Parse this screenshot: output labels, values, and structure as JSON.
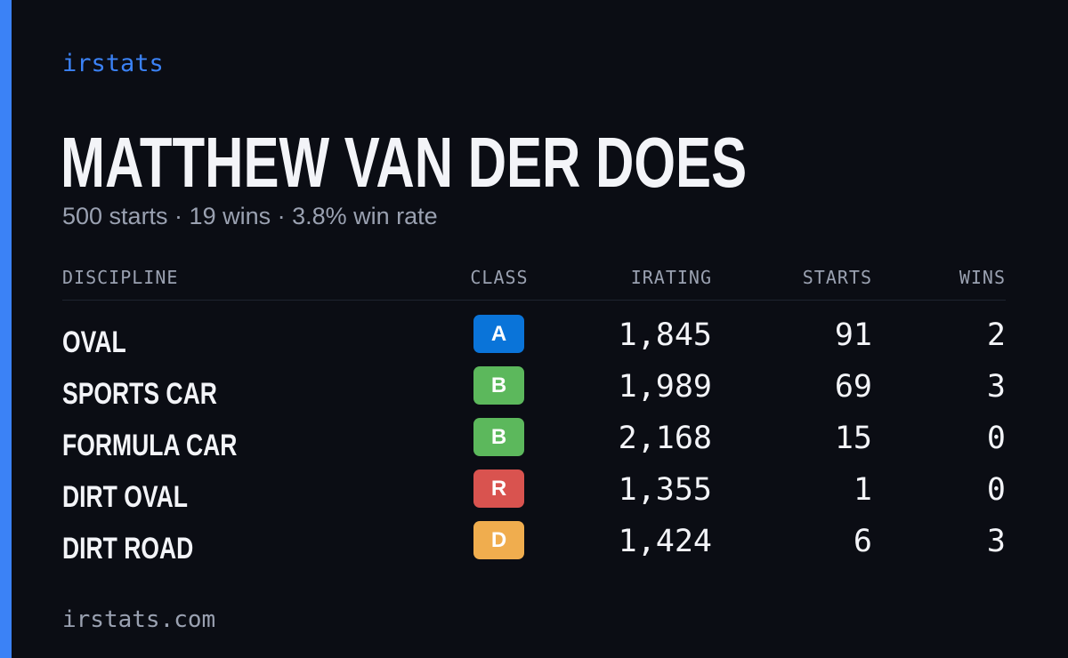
{
  "brand": {
    "name": "irstats",
    "accent_color": "#3b82f6"
  },
  "profile": {
    "name": "MATTHEW VAN DER DOES",
    "summary": "500 starts · 19 wins · 3.8% win rate"
  },
  "table": {
    "headers": {
      "discipline": "DISCIPLINE",
      "class": "CLASS",
      "irating": "IRATING",
      "starts": "STARTS",
      "wins": "WINS"
    },
    "rows": [
      {
        "discipline": "OVAL",
        "class": "A",
        "class_color": "#0a74d9",
        "irating": "1,845",
        "starts": "91",
        "wins": "2"
      },
      {
        "discipline": "SPORTS CAR",
        "class": "B",
        "class_color": "#5cb85c",
        "irating": "1,989",
        "starts": "69",
        "wins": "3"
      },
      {
        "discipline": "FORMULA CAR",
        "class": "B",
        "class_color": "#5cb85c",
        "irating": "2,168",
        "starts": "15",
        "wins": "0"
      },
      {
        "discipline": "DIRT OVAL",
        "class": "R",
        "class_color": "#d9534f",
        "irating": "1,355",
        "starts": "1",
        "wins": "0"
      },
      {
        "discipline": "DIRT ROAD",
        "class": "D",
        "class_color": "#f0ad4e",
        "irating": "1,424",
        "starts": "6",
        "wins": "3"
      }
    ]
  },
  "footer": {
    "url": "irstats.com"
  }
}
